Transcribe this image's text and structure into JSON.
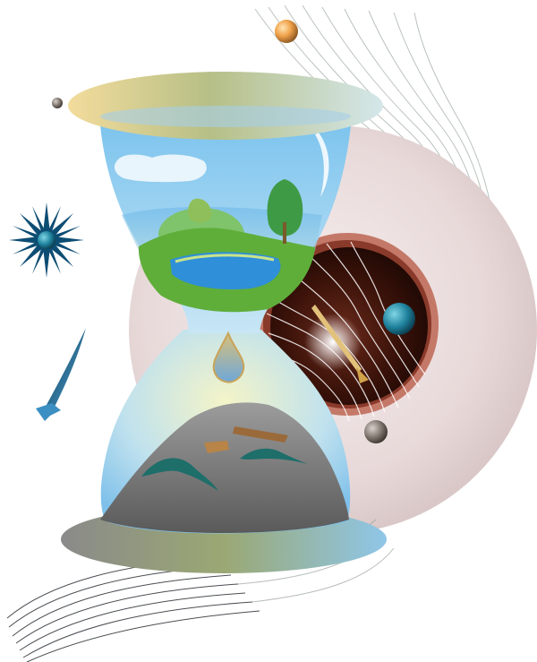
{
  "illustration": {
    "subject": "hourglass-over-eyeball",
    "has_text": false
  },
  "palette": {
    "eyeball": "#e9dcdc",
    "iris_ring": "#c47868",
    "pupil": "#2a0f0a",
    "glass": "#8ec9ea",
    "sand_rock": "#7d7d7d",
    "plate_left": "#f2d79a",
    "plate_right": "#cfe3e6",
    "grass": "#5fae3a",
    "lake": "#2f8fd8",
    "star": "#0d4d73",
    "orb_orange": "#f2a54a",
    "orb_teal": "#1d7f9a"
  }
}
